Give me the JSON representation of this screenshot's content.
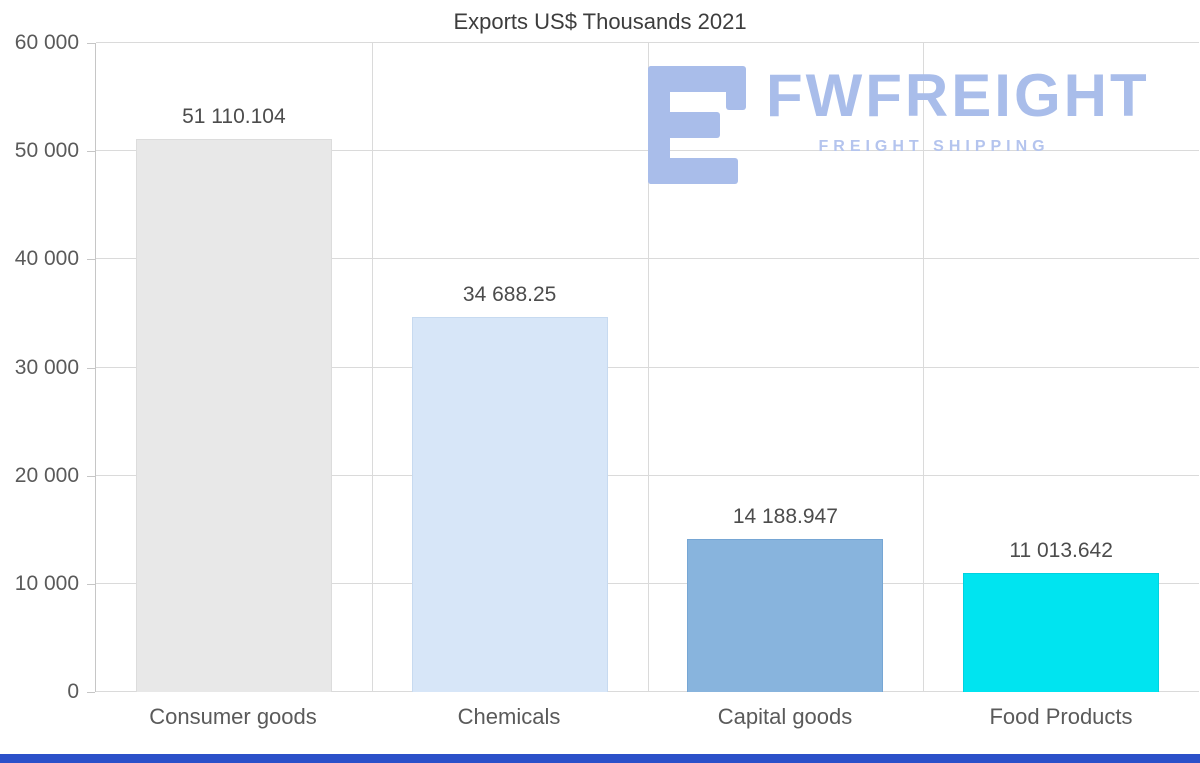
{
  "title": "Exports US$ Thousands 2021",
  "watermark": {
    "brand": "FWFREIGHT",
    "tagline": "FREIGHT SHIPPING",
    "color": "#a9bdea",
    "tagline_color": "#b4c4ee"
  },
  "footer_bar_color": "#2b50c9",
  "chart_data": {
    "type": "bar",
    "title": "Exports US$ Thousands 2021",
    "categories": [
      "Consumer goods",
      "Chemicals",
      "Capital goods",
      "Food Products"
    ],
    "values": [
      51110.104,
      34688.25,
      14188.947,
      11013.642
    ],
    "value_labels": [
      "51 110.104",
      "34 688.25",
      "14 188.947",
      "11 013.642"
    ],
    "bar_colors": [
      "#e8e8e8",
      "#d7e6f8",
      "#88b4dd",
      "#00e4f0"
    ],
    "bar_border_colors": [
      "#dcdcdc",
      "#c7daf0",
      "#76a6d4",
      "#00d2e0"
    ],
    "xlabel": "",
    "ylabel": "",
    "ylim": [
      0,
      60000
    ],
    "ytick_labels": [
      "0",
      "10 000",
      "20 000",
      "30 000",
      "40 000",
      "50 000",
      "60 000"
    ],
    "grid": true,
    "legend": false
  }
}
